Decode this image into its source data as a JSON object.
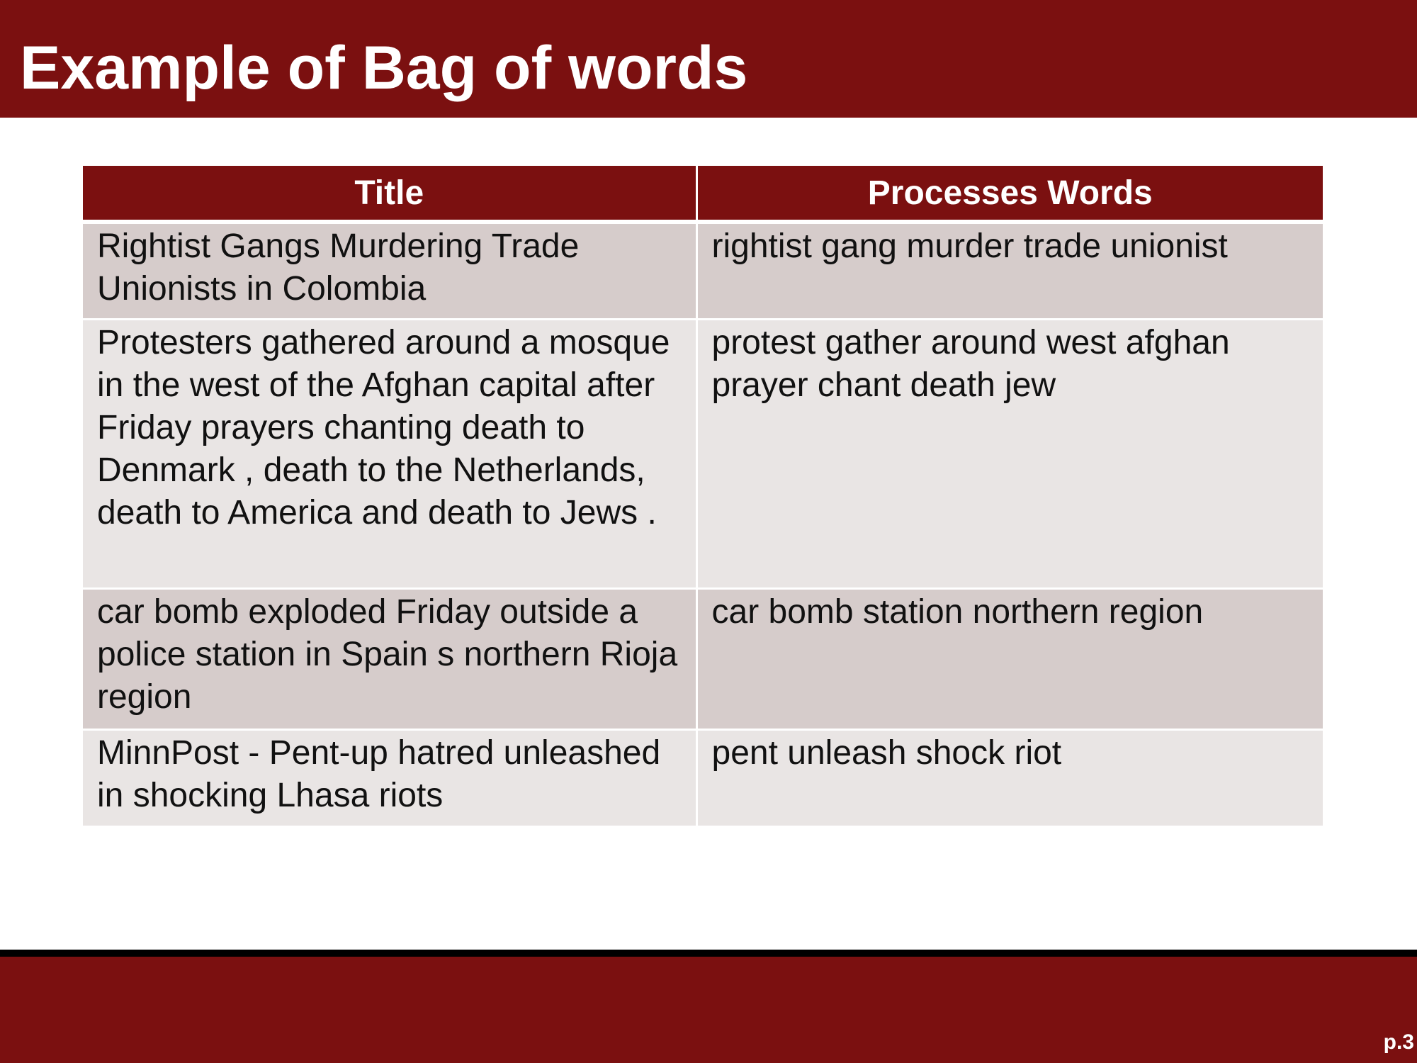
{
  "slide": {
    "title": "Example of Bag of words",
    "page_number": "p.3"
  },
  "table": {
    "headers": [
      "Title",
      "Processes Words"
    ],
    "rows": [
      {
        "title": "Rightist Gangs Murdering Trade Unionists in Colombia",
        "processed": "rightist gang murder trade unionist"
      },
      {
        "title": "Protesters gathered around a mosque in the west of the Afghan capital after Friday prayers chanting death to Denmark , death to the Netherlands, death to America and death to Jews .",
        "processed": "protest gather around west afghan prayer chant death jew"
      },
      {
        "title": "car bomb exploded Friday outside a police station in Spain s northern Rioja region",
        "processed": "car bomb station northern region"
      },
      {
        "title": "MinnPost - Pent-up hatred unleashed in shocking Lhasa riots",
        "processed": "pent unleash shock riot"
      }
    ]
  },
  "colors": {
    "brand": "#7b1010",
    "row_dark": "#d6cccb",
    "row_light": "#e9e5e4",
    "footer_rule": "#000000"
  }
}
